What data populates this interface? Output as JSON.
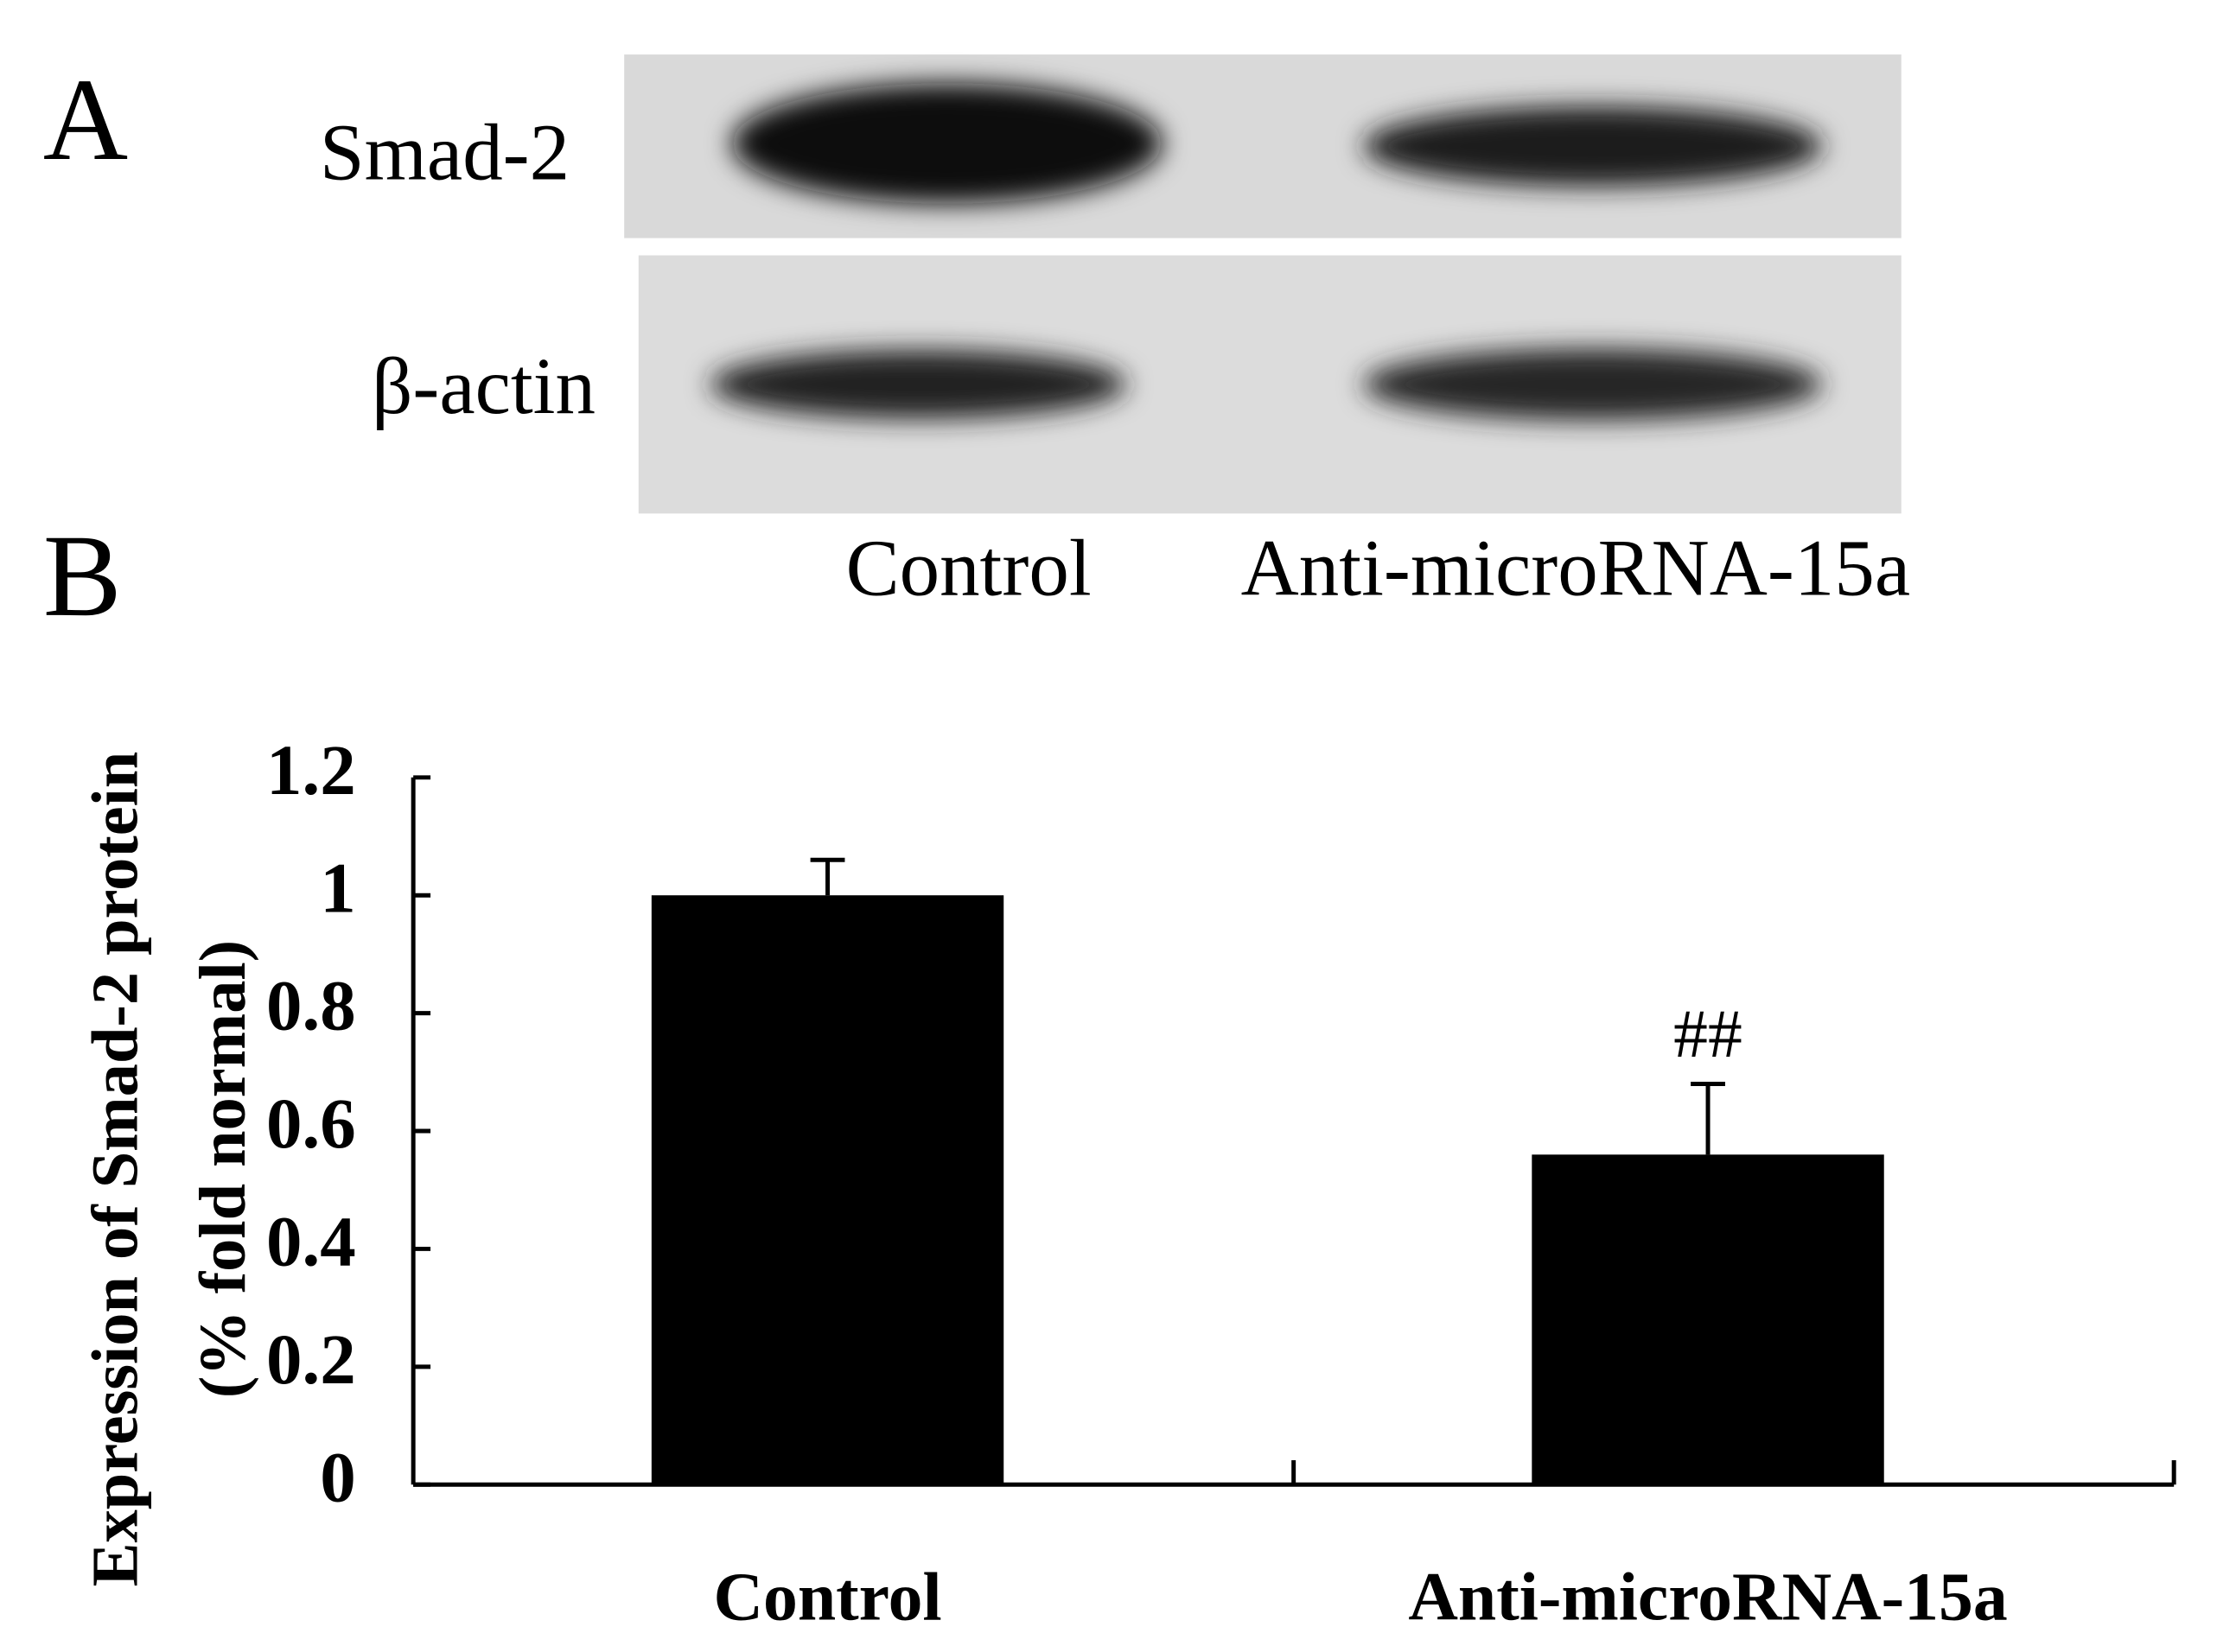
{
  "panel_labels": [
    "A",
    "B"
  ],
  "blot": {
    "rows": [
      "Smad-2",
      "β-actin"
    ],
    "lanes": [
      "Control",
      "Anti-microRNA-15a"
    ]
  },
  "chart_data": {
    "type": "bar",
    "y_label": [
      "Expression of Smad-2 protein",
      "(% fold normal)"
    ],
    "categories": [
      "Control",
      "Anti-microRNA-15a"
    ],
    "values": [
      1.0,
      0.56
    ],
    "errors": [
      0.06,
      0.12
    ],
    "color": "#000000",
    "ylim": [
      0,
      1.2
    ],
    "yticks": [
      0,
      0.2,
      0.4,
      0.6,
      0.8,
      1,
      1.2
    ],
    "annotation": {
      "category": "Anti-microRNA-15a",
      "text": "##"
    },
    "grid": false
  }
}
